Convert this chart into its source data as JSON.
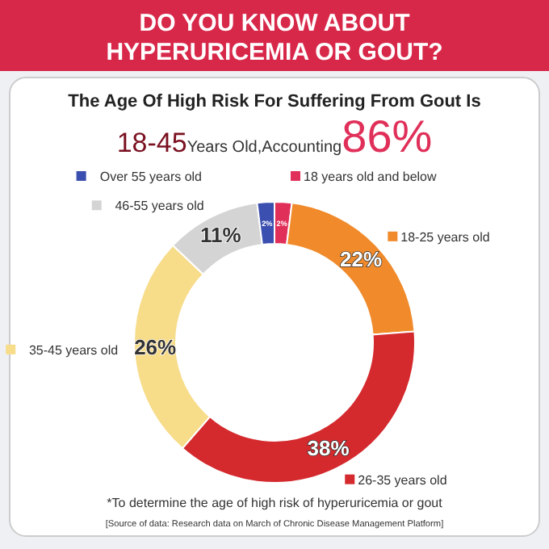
{
  "chart_data": {
    "type": "donut",
    "title": "DO YOU KNOW ABOUT HYPERURICEMIA OR GOUT?",
    "subtitle": "The Age Of High Risk For Suffering From Gout Is 18-45Years Old,Accounting86%",
    "categories": [
      "18 years old and below",
      "18-25 years old",
      "26-35 years old",
      "35-45 years old",
      "46-55 years old",
      "Over 55 years old"
    ],
    "values": [
      2,
      22,
      38,
      26,
      11,
      2
    ],
    "legend": "top",
    "value_labels": [
      "2%",
      "22%",
      "38%",
      "26%",
      "11%",
      "2%"
    ],
    "colors": [
      "#e0305a",
      "#f08a2a",
      "#d42a2e",
      "#f7dc8a",
      "#d4d4d4",
      "#3a4fb0"
    ],
    "annotations": [
      "*To determine the age of high risk of hyperuricemia or gout",
      "[Source of data: Research data on March of Chronic Disease Management Platform]"
    ]
  }
}
